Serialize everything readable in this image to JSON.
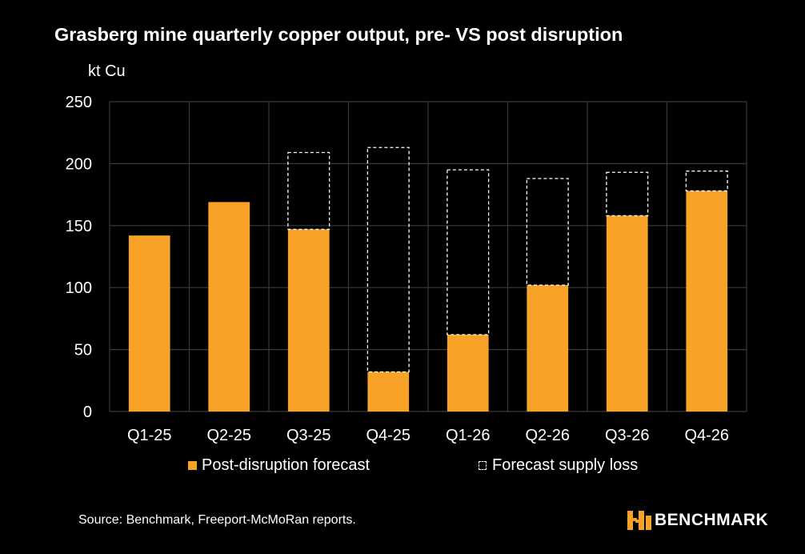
{
  "chart_data": {
    "type": "bar",
    "stacked": true,
    "title": "Grasberg mine quarterly copper output, pre- VS post disruption",
    "ylabel": "kt Cu",
    "xlabel": "",
    "ylim": [
      0,
      250
    ],
    "yticks": [
      0,
      50,
      100,
      150,
      200,
      250
    ],
    "grid": true,
    "legend_position": "bottom",
    "categories": [
      "Q1-25",
      "Q2-25",
      "Q3-25",
      "Q4-25",
      "Q1-26",
      "Q2-26",
      "Q3-26",
      "Q4-26"
    ],
    "series": [
      {
        "name": "Post-disruption forecast",
        "style": "solid",
        "color": "#F8A227",
        "values": [
          142,
          169,
          147,
          32,
          62,
          102,
          158,
          178
        ]
      },
      {
        "name": "Forecast supply loss",
        "style": "dashed-outline",
        "color": "#FFFFFF",
        "values": [
          0,
          0,
          62,
          181,
          133,
          86,
          35,
          16
        ]
      }
    ]
  },
  "footer": {
    "source": "Source: Benchmark, Freeport-McMoRan reports.",
    "brand": "BENCHMARK"
  },
  "colors": {
    "background": "#000000",
    "bar": "#F8A227",
    "grid": "#3A3A3A",
    "text": "#FFFFFF"
  }
}
